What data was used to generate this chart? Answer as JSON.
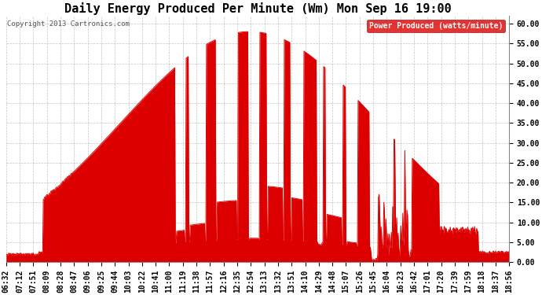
{
  "title": "Daily Energy Produced Per Minute (Wm) Mon Sep 16 19:00",
  "copyright": "Copyright 2013 Cartronics.com",
  "legend_label": "Power Produced (watts/minute)",
  "legend_bg": "#dd0000",
  "legend_fg": "#ffffff",
  "line_color": "#dd0000",
  "fill_color": "#dd0000",
  "bg_color": "#ffffff",
  "plot_bg": "#ffffff",
  "grid_color": "#aaaaaa",
  "ylim": [
    0.0,
    62.0
  ],
  "yticks": [
    0,
    5,
    10,
    15,
    20,
    25,
    30,
    35,
    40,
    45,
    50,
    55,
    60
  ],
  "title_fontsize": 11,
  "tick_fontsize": 7,
  "dpi": 100,
  "figsize": [
    6.9,
    3.75
  ],
  "x_labels": [
    "06:32",
    "07:12",
    "07:51",
    "08:09",
    "08:28",
    "08:47",
    "09:06",
    "09:25",
    "09:44",
    "10:03",
    "10:22",
    "10:41",
    "11:00",
    "11:19",
    "11:38",
    "11:57",
    "12:16",
    "12:35",
    "12:54",
    "13:13",
    "13:32",
    "13:51",
    "14:10",
    "14:29",
    "14:48",
    "15:07",
    "15:26",
    "15:45",
    "16:04",
    "16:23",
    "16:42",
    "17:01",
    "17:20",
    "17:39",
    "17:59",
    "18:18",
    "18:37",
    "18:56"
  ]
}
